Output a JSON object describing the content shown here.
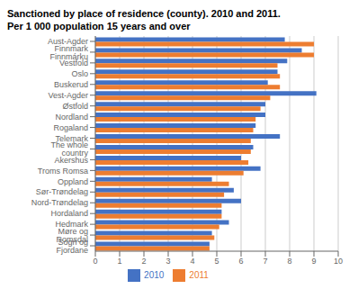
{
  "chart_data": {
    "type": "bar",
    "orientation": "horizontal",
    "title": "Sanctioned by place of residence (county). 2010 and 2011.",
    "subtitle": "Per 1 000 population 15 years and over",
    "categories": [
      "Aust-Agder",
      "Finnmark Finnmárku",
      "Vestfold",
      "Oslo",
      "Buskerud",
      "Vest-Agder",
      "Østfold",
      "Nordland",
      "Rogaland",
      "Telemark",
      "The whole country",
      "Akershus",
      "Troms Romsa",
      "Oppland",
      "Sør-Trøndelag",
      "Nord-Trøndelag",
      "Hordaland",
      "Hedmark",
      "Møre og Romsdal",
      "Sogn og Fjordane"
    ],
    "series": [
      {
        "name": "2010",
        "color": "#4472c4",
        "values": [
          7.8,
          8.5,
          7.9,
          7.5,
          7.1,
          9.1,
          7.0,
          7.0,
          6.6,
          7.6,
          6.5,
          6.0,
          6.8,
          4.8,
          5.7,
          6.0,
          5.2,
          5.5,
          4.8,
          4.7
        ]
      },
      {
        "name": "2011",
        "color": "#ed7d31",
        "values": [
          9.0,
          9.0,
          7.5,
          7.6,
          7.6,
          7.2,
          6.8,
          6.6,
          6.5,
          6.4,
          6.4,
          6.3,
          6.1,
          5.5,
          5.3,
          5.2,
          5.2,
          5.1,
          4.9,
          4.7
        ]
      }
    ],
    "xlim": [
      0,
      10
    ],
    "xticks": [
      0,
      1,
      2,
      3,
      4,
      5,
      6,
      7,
      8,
      9,
      10
    ],
    "grid": true,
    "legend": "bottom"
  }
}
